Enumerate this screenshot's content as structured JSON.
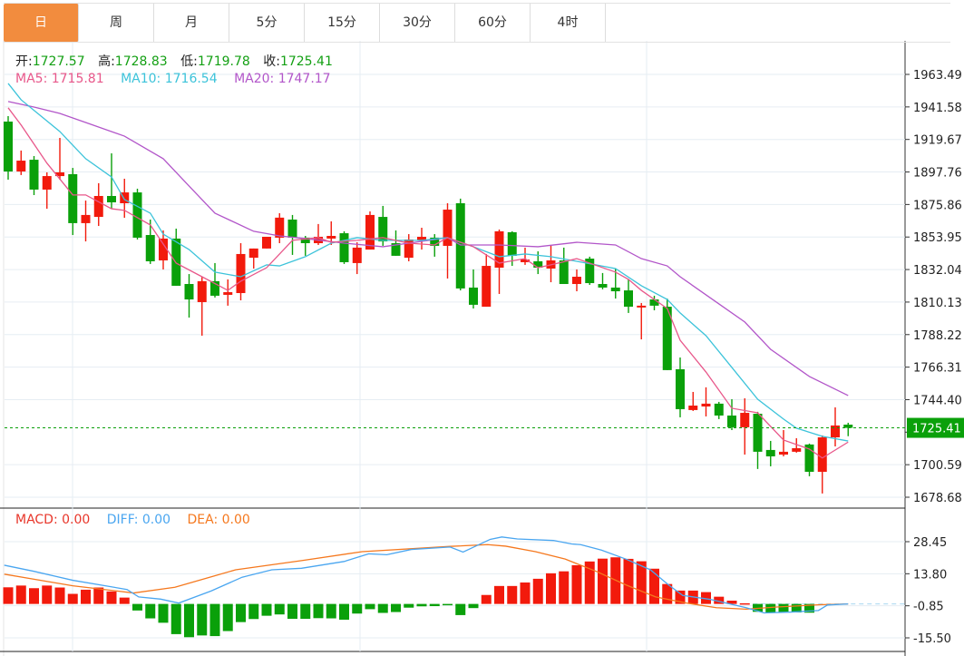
{
  "tabs": [
    {
      "label": "日",
      "active": true
    },
    {
      "label": "周"
    },
    {
      "label": "月"
    },
    {
      "label": "5分"
    },
    {
      "label": "15分"
    },
    {
      "label": "30分"
    },
    {
      "label": "60分"
    },
    {
      "label": "4时"
    }
  ],
  "ohlc_legend": {
    "open_label": "开:",
    "open": "1727.57",
    "high_label": "高:",
    "high": "1728.83",
    "low_label": "低:",
    "low": "1719.78",
    "close_label": "收:",
    "close": "1725.41"
  },
  "ma_legend": {
    "ma5": "MA5: 1715.81",
    "ma10": "MA10: 1716.54",
    "ma20": "MA20: 1747.17"
  },
  "macd_legend": {
    "macd": "MACD: 0.00",
    "diff": "DIFF: 0.00",
    "dea": "DEA: 0.00"
  },
  "colors": {
    "up": "#f21a0c",
    "down": "#0aa00a",
    "ma5": "#e8578a",
    "ma10": "#3cc3da",
    "ma20": "#b256c9",
    "diff": "#4aa6f0",
    "dea": "#f5781e",
    "accent": "#f28c3e",
    "last_price_bg": "#0aa00a"
  },
  "chart_data": {
    "type": "candlestick",
    "price_axis_labels": [
      "1963.49",
      "1941.58",
      "1919.67",
      "1897.76",
      "1875.86",
      "1853.95",
      "1832.04",
      "1810.13",
      "1788.22",
      "1766.31",
      "1744.40",
      "1722.50",
      "1700.59",
      "1678.68"
    ],
    "price_range": [
      1678.68,
      1963.49
    ],
    "last_price": "1725.41",
    "candles": [
      [
        1931.7,
        1935.4,
        1892.6,
        1898.1
      ],
      [
        1898.1,
        1912.2,
        1895.7,
        1905.4
      ],
      [
        1906.0,
        1908.5,
        1882.2,
        1885.9
      ],
      [
        1885.9,
        1897.5,
        1873.0,
        1895.0
      ],
      [
        1895.0,
        1920.7,
        1892.6,
        1897.5
      ],
      [
        1896.3,
        1900.5,
        1855.3,
        1863.3
      ],
      [
        1863.3,
        1878.5,
        1851.0,
        1868.8
      ],
      [
        1867.5,
        1890.2,
        1861.4,
        1881.6
      ],
      [
        1881.6,
        1910.3,
        1873.0,
        1877.3
      ],
      [
        1876.7,
        1893.2,
        1866.9,
        1884.0
      ],
      [
        1884.0,
        1886.5,
        1852.3,
        1853.5
      ],
      [
        1855.3,
        1865.7,
        1835.8,
        1837.6
      ],
      [
        1838.2,
        1858.4,
        1832.1,
        1852.9
      ],
      [
        1852.9,
        1859.6,
        1821.1,
        1821.1
      ],
      [
        1822.3,
        1829.0,
        1799.7,
        1811.9
      ],
      [
        1810.1,
        1827.2,
        1787.5,
        1824.2
      ],
      [
        1824.2,
        1836.4,
        1813.2,
        1814.4
      ],
      [
        1815.0,
        1825.4,
        1807.7,
        1816.8
      ],
      [
        1816.2,
        1849.8,
        1811.3,
        1842.5
      ],
      [
        1840.0,
        1846.2,
        1832.7,
        1846.2
      ],
      [
        1846.2,
        1854.1,
        1846.2,
        1854.1
      ],
      [
        1853.5,
        1870.0,
        1849.8,
        1867.0
      ],
      [
        1865.7,
        1868.8,
        1841.9,
        1853.5
      ],
      [
        1853.5,
        1854.7,
        1841.3,
        1849.8
      ],
      [
        1849.8,
        1862.7,
        1848.6,
        1854.1
      ],
      [
        1852.9,
        1864.5,
        1848.6,
        1854.7
      ],
      [
        1856.5,
        1857.8,
        1835.8,
        1837.0
      ],
      [
        1836.4,
        1850.4,
        1829.0,
        1846.8
      ],
      [
        1845.5,
        1871.2,
        1845.5,
        1868.8
      ],
      [
        1867.5,
        1874.9,
        1848.0,
        1851.0
      ],
      [
        1849.8,
        1858.4,
        1841.3,
        1841.3
      ],
      [
        1840.0,
        1855.9,
        1837.6,
        1852.3
      ],
      [
        1851.7,
        1860.2,
        1845.5,
        1854.1
      ],
      [
        1853.5,
        1855.9,
        1840.7,
        1848.0
      ],
      [
        1848.0,
        1876.7,
        1826.0,
        1872.4
      ],
      [
        1876.7,
        1879.8,
        1818.0,
        1819.3
      ],
      [
        1819.9,
        1832.1,
        1805.8,
        1808.3
      ],
      [
        1807.0,
        1842.5,
        1807.0,
        1834.5
      ],
      [
        1833.3,
        1859.0,
        1815.6,
        1857.8
      ],
      [
        1857.2,
        1857.8,
        1834.5,
        1841.3
      ],
      [
        1837.0,
        1846.8,
        1835.2,
        1838.8
      ],
      [
        1837.6,
        1844.3,
        1829.0,
        1833.3
      ],
      [
        1832.7,
        1848.6,
        1823.5,
        1838.2
      ],
      [
        1838.2,
        1846.8,
        1822.3,
        1822.3
      ],
      [
        1822.3,
        1832.1,
        1817.4,
        1827.2
      ],
      [
        1839.4,
        1840.7,
        1821.7,
        1822.9
      ],
      [
        1822.3,
        1829.7,
        1818.7,
        1819.9
      ],
      [
        1819.9,
        1832.7,
        1812.5,
        1817.4
      ],
      [
        1818.0,
        1825.4,
        1802.8,
        1807.0
      ],
      [
        1807.0,
        1809.5,
        1785.0,
        1807.7
      ],
      [
        1811.9,
        1814.4,
        1804.6,
        1807.7
      ],
      [
        1807.0,
        1812.5,
        1764.3,
        1764.3
      ],
      [
        1764.9,
        1772.8,
        1732.5,
        1738.0
      ],
      [
        1737.4,
        1749.6,
        1736.8,
        1740.4
      ],
      [
        1739.8,
        1752.7,
        1733.1,
        1741.7
      ],
      [
        1741.7,
        1742.9,
        1731.3,
        1733.7
      ],
      [
        1733.7,
        1744.7,
        1723.9,
        1725.8
      ],
      [
        1725.8,
        1745.3,
        1707.4,
        1735.5
      ],
      [
        1734.9,
        1736.2,
        1697.7,
        1709.3
      ],
      [
        1710.5,
        1716.6,
        1699.5,
        1706.2
      ],
      [
        1707.4,
        1723.9,
        1706.2,
        1709.3
      ],
      [
        1709.3,
        1718.4,
        1708.7,
        1711.7
      ],
      [
        1714.2,
        1714.8,
        1692.8,
        1695.8
      ],
      [
        1695.8,
        1720.3,
        1681.2,
        1719.0
      ],
      [
        1719.0,
        1739.2,
        1712.9,
        1727.0
      ],
      [
        1727.57,
        1728.83,
        1719.78,
        1725.41
      ]
    ],
    "ma5": [
      [
        1,
        1941.0
      ],
      [
        2,
        1929.4
      ],
      [
        4,
        1903.7
      ],
      [
        6,
        1882.3
      ],
      [
        7,
        1882.3
      ],
      [
        9,
        1873.0
      ],
      [
        10,
        1871.9
      ],
      [
        12,
        1862.1
      ],
      [
        14,
        1836.4
      ],
      [
        16,
        1827.2
      ],
      [
        18,
        1818.0
      ],
      [
        19,
        1824.2
      ],
      [
        21,
        1833.3
      ],
      [
        23,
        1851.7
      ],
      [
        25,
        1853.5
      ],
      [
        26,
        1850.4
      ],
      [
        28,
        1851.7
      ],
      [
        30,
        1853.5
      ],
      [
        32,
        1849.8
      ],
      [
        34,
        1848.6
      ],
      [
        35,
        1853.5
      ],
      [
        37,
        1847.4
      ],
      [
        39,
        1836.4
      ],
      [
        41,
        1839.4
      ],
      [
        42,
        1833.3
      ],
      [
        43,
        1835.2
      ],
      [
        45,
        1839.4
      ],
      [
        48,
        1830.3
      ],
      [
        49,
        1825.4
      ],
      [
        50,
        1818.0
      ],
      [
        52,
        1805.8
      ],
      [
        53,
        1784.4
      ],
      [
        55,
        1763.0
      ],
      [
        57,
        1738.6
      ],
      [
        59,
        1735.5
      ],
      [
        61,
        1717.2
      ],
      [
        63,
        1711.1
      ],
      [
        64,
        1705.1
      ],
      [
        66,
        1715.81
      ]
    ],
    "ma10": [
      [
        1,
        1957.4
      ],
      [
        2,
        1946.4
      ],
      [
        5,
        1925.0
      ],
      [
        6,
        1915.8
      ],
      [
        7,
        1906.7
      ],
      [
        9,
        1894.4
      ],
      [
        10,
        1879.2
      ],
      [
        12,
        1870.0
      ],
      [
        13,
        1855.9
      ],
      [
        15,
        1845.5
      ],
      [
        17,
        1830.3
      ],
      [
        19,
        1827.2
      ],
      [
        21,
        1835.2
      ],
      [
        22,
        1834.5
      ],
      [
        24,
        1840.7
      ],
      [
        26,
        1849.8
      ],
      [
        28,
        1853.5
      ],
      [
        30,
        1851.7
      ],
      [
        33,
        1851.7
      ],
      [
        35,
        1853.5
      ],
      [
        37,
        1847.4
      ],
      [
        39,
        1840.7
      ],
      [
        41,
        1842.5
      ],
      [
        43,
        1840.7
      ],
      [
        45,
        1837.6
      ],
      [
        48,
        1832.7
      ],
      [
        50,
        1821.1
      ],
      [
        52,
        1811.9
      ],
      [
        53,
        1802.8
      ],
      [
        55,
        1787.5
      ],
      [
        57,
        1766.1
      ],
      [
        59,
        1744.7
      ],
      [
        61,
        1731.3
      ],
      [
        62,
        1725.2
      ],
      [
        64,
        1719.7
      ],
      [
        66,
        1716.54
      ]
    ],
    "ma20": [
      [
        1,
        1945.2
      ],
      [
        3,
        1941.5
      ],
      [
        5,
        1937.2
      ],
      [
        7,
        1931.1
      ],
      [
        10,
        1921.9
      ],
      [
        13,
        1906.7
      ],
      [
        15,
        1888.3
      ],
      [
        17,
        1870.0
      ],
      [
        20,
        1857.8
      ],
      [
        22,
        1854.7
      ],
      [
        24,
        1852.9
      ],
      [
        27,
        1849.8
      ],
      [
        30,
        1847.4
      ],
      [
        32,
        1849.8
      ],
      [
        35,
        1853.5
      ],
      [
        36,
        1848.6
      ],
      [
        39,
        1848.6
      ],
      [
        42,
        1847.4
      ],
      [
        45,
        1850.4
      ],
      [
        48,
        1848.6
      ],
      [
        50,
        1839.4
      ],
      [
        52,
        1834.5
      ],
      [
        53,
        1827.2
      ],
      [
        56,
        1808.9
      ],
      [
        58,
        1796.7
      ],
      [
        60,
        1778.3
      ],
      [
        63,
        1760.0
      ],
      [
        66,
        1747.17
      ]
    ],
    "macd_axis_labels": [
      "28.45",
      "13.80",
      "-0.85",
      "-15.50"
    ],
    "macd_hist": [
      7.6,
      8.4,
      7.2,
      8.4,
      7.5,
      4.6,
      6.5,
      7.5,
      5.7,
      2.9,
      -3.0,
      -6.6,
      -8.6,
      -13.8,
      -15.2,
      -14.4,
      -14.7,
      -12.4,
      -8.3,
      -6.9,
      -5.4,
      -4.8,
      -6.8,
      -6.8,
      -6.5,
      -6.6,
      -7.2,
      -4.4,
      -2.4,
      -4.1,
      -3.7,
      -1.7,
      -1.1,
      -1.0,
      -0.4,
      -5.1,
      -1.9,
      4.1,
      8.2,
      8.2,
      9.8,
      11.5,
      14.0,
      14.9,
      17.7,
      19.4,
      20.7,
      21.3,
      20.6,
      19.5,
      16.1,
      9.1,
      6.1,
      6.1,
      5.4,
      3.3,
      1.5,
      0.3,
      -3.6,
      -4.0,
      -3.9,
      -3.9,
      -4.0,
      0,
      0,
      0
    ],
    "diff": [
      [
        0.7,
        17.7
      ],
      [
        3.0,
        14.9
      ],
      [
        6.0,
        10.8
      ],
      [
        10.2,
        6.6
      ],
      [
        11.1,
        3.2
      ],
      [
        12.8,
        2.2
      ],
      [
        14.2,
        0.4
      ],
      [
        16.7,
        5.9
      ],
      [
        19.1,
        12.2
      ],
      [
        21.4,
        15.6
      ],
      [
        23.7,
        16.3
      ],
      [
        27.0,
        19.4
      ],
      [
        28.9,
        22.9
      ],
      [
        30.3,
        22.5
      ],
      [
        32.2,
        24.9
      ],
      [
        35.2,
        26.0
      ],
      [
        36.2,
        23.7
      ],
      [
        38.3,
        29.5
      ],
      [
        39.2,
        30.6
      ],
      [
        40.4,
        29.7
      ],
      [
        43.2,
        29.0
      ],
      [
        44.6,
        27.4
      ],
      [
        45.3,
        27.1
      ],
      [
        46.9,
        24.6
      ],
      [
        48.8,
        20.5
      ],
      [
        50.7,
        15.6
      ],
      [
        52.1,
        8.7
      ],
      [
        53.2,
        3.9
      ],
      [
        55.3,
        2.1
      ],
      [
        58.1,
        -1.7
      ],
      [
        59.5,
        -4.1
      ],
      [
        61.6,
        -3.7
      ],
      [
        63.7,
        -3.0
      ],
      [
        64.4,
        -0.5
      ],
      [
        66,
        0
      ]
    ],
    "dea": [
      [
        0.7,
        13.6
      ],
      [
        6.0,
        8.3
      ],
      [
        10.7,
        5.0
      ],
      [
        13.9,
        7.6
      ],
      [
        18.6,
        15.6
      ],
      [
        23.7,
        19.8
      ],
      [
        28.4,
        23.9
      ],
      [
        35.2,
        26.3
      ],
      [
        38.1,
        27.1
      ],
      [
        39.5,
        26.4
      ],
      [
        41.8,
        23.9
      ],
      [
        44.1,
        20.5
      ],
      [
        46.5,
        14.9
      ],
      [
        48.8,
        8.7
      ],
      [
        51.1,
        3.2
      ],
      [
        53.5,
        0.4
      ],
      [
        55.8,
        -1.7
      ],
      [
        58.1,
        -2.4
      ],
      [
        60.5,
        -1.4
      ],
      [
        64.0,
        -0.3
      ],
      [
        66,
        0
      ]
    ],
    "macd_range": [
      -15.5,
      28.45
    ]
  }
}
